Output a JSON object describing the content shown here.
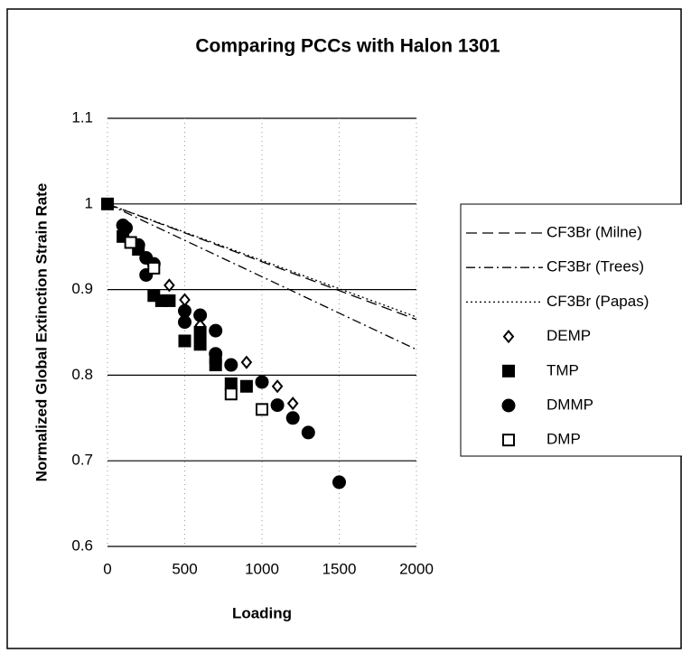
{
  "chart_data": {
    "type": "scatter",
    "title": "Comparing PCCs with Halon 1301",
    "x_label": "Loading",
    "y_label": "Normalized Global Extinction Strain Rate",
    "xlim": [
      0,
      2000
    ],
    "xticks": [
      0,
      500,
      1000,
      1500,
      2000
    ],
    "ylim": [
      0.6,
      1.1
    ],
    "yticks": [
      0.6,
      0.7,
      0.8,
      0.9,
      1,
      1.1
    ],
    "grid": true,
    "legend": "right",
    "series": [
      {
        "name": "CF3Br (Milne)",
        "color": "#000000",
        "kind": "line",
        "dash": "12 6",
        "x": [
          0,
          2000
        ],
        "values": [
          1,
          0.865
        ]
      },
      {
        "name": "CF3Br (Trees)",
        "color": "#000000",
        "kind": "line",
        "dash": "10 4 2 4",
        "x": [
          0,
          2000
        ],
        "values": [
          1,
          0.83
        ]
      },
      {
        "name": "CF3Br (Papas)",
        "color": "#000000",
        "kind": "line",
        "dash": "2 3",
        "x": [
          0,
          2000
        ],
        "values": [
          1,
          0.868
        ]
      },
      {
        "name": "DEMP",
        "color": "#000000",
        "kind": "marker",
        "marker": "diamond",
        "filled": false,
        "x": [
          400,
          500,
          600,
          900,
          1100,
          1200
        ],
        "values": [
          0.905,
          0.888,
          0.858,
          0.815,
          0.787,
          0.767
        ]
      },
      {
        "name": "TMP",
        "color": "#000000",
        "kind": "marker",
        "marker": "square",
        "filled": true,
        "x": [
          0,
          100,
          200,
          300,
          350,
          400,
          500,
          600,
          600,
          700,
          700,
          800,
          900
        ],
        "values": [
          1.0,
          0.962,
          0.947,
          0.893,
          0.887,
          0.887,
          0.84,
          0.836,
          0.85,
          0.812,
          0.82,
          0.79,
          0.787
        ]
      },
      {
        "name": "DMMP",
        "color": "#000000",
        "kind": "marker",
        "marker": "circle",
        "filled": true,
        "x": [
          100,
          120,
          200,
          250,
          250,
          300,
          500,
          500,
          600,
          700,
          700,
          800,
          1000,
          1100,
          1200,
          1300,
          1500
        ],
        "values": [
          0.975,
          0.972,
          0.952,
          0.937,
          0.917,
          0.93,
          0.875,
          0.862,
          0.87,
          0.852,
          0.825,
          0.812,
          0.792,
          0.765,
          0.75,
          0.733,
          0.675
        ]
      },
      {
        "name": "DMP",
        "color": "#000000",
        "kind": "marker",
        "marker": "square",
        "filled": false,
        "x": [
          150,
          300,
          800,
          1000
        ],
        "values": [
          0.955,
          0.925,
          0.778,
          0.76
        ]
      }
    ]
  }
}
